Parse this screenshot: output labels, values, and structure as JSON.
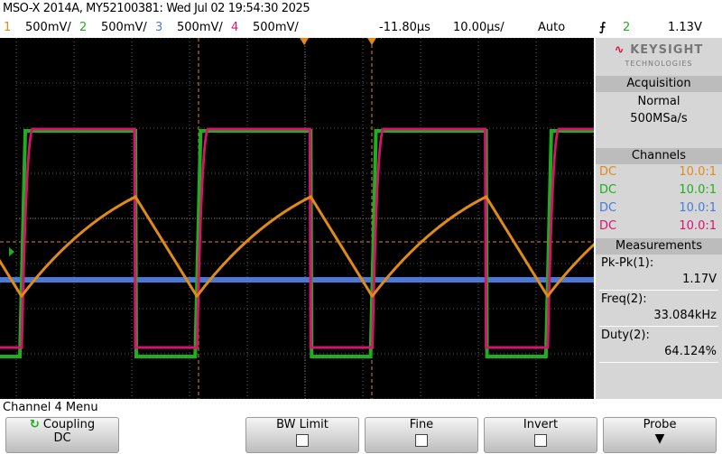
{
  "header": {
    "title": "MSO-X 2014A, MY52100381: Wed Jul 02 19:54:30 2025"
  },
  "channels": [
    {
      "number": "1",
      "scale": "500mV/"
    },
    {
      "number": "2",
      "scale": "500mV/"
    },
    {
      "number": "3",
      "scale": "500mV/"
    },
    {
      "number": "4",
      "scale": "500mV/"
    }
  ],
  "timebase": {
    "delay": "-11.80µs",
    "scale": "10.00µs/"
  },
  "trigger": {
    "mode": "Auto",
    "source": "2",
    "level": "1.13V"
  },
  "brand": {
    "name": "KEYSIGHT",
    "sub": "TECHNOLOGIES"
  },
  "acquisition": {
    "title": "Acquisition",
    "mode": "Normal",
    "rate": "500MSa/s"
  },
  "channel_panel": {
    "title": "Channels",
    "rows": [
      {
        "coupling": "DC",
        "probe": "10.0:1"
      },
      {
        "coupling": "DC",
        "probe": "10.0:1"
      },
      {
        "coupling": "DC",
        "probe": "10.0:1"
      },
      {
        "coupling": "DC",
        "probe": "10.0:1"
      }
    ]
  },
  "measurements": {
    "title": "Measurements",
    "items": [
      {
        "label": "Pk-Pk(1):",
        "value": "1.17V"
      },
      {
        "label": "Freq(2):",
        "value": "33.084kHz"
      },
      {
        "label": "Duty(2):",
        "value": "64.124%"
      }
    ]
  },
  "menu": {
    "title": "Channel 4 Menu",
    "softkeys": [
      {
        "label": "Coupling",
        "value": "DC"
      },
      {
        "label": "BW Limit"
      },
      {
        "label": "Fine"
      },
      {
        "label": "Invert"
      },
      {
        "label": "Probe"
      }
    ]
  }
}
